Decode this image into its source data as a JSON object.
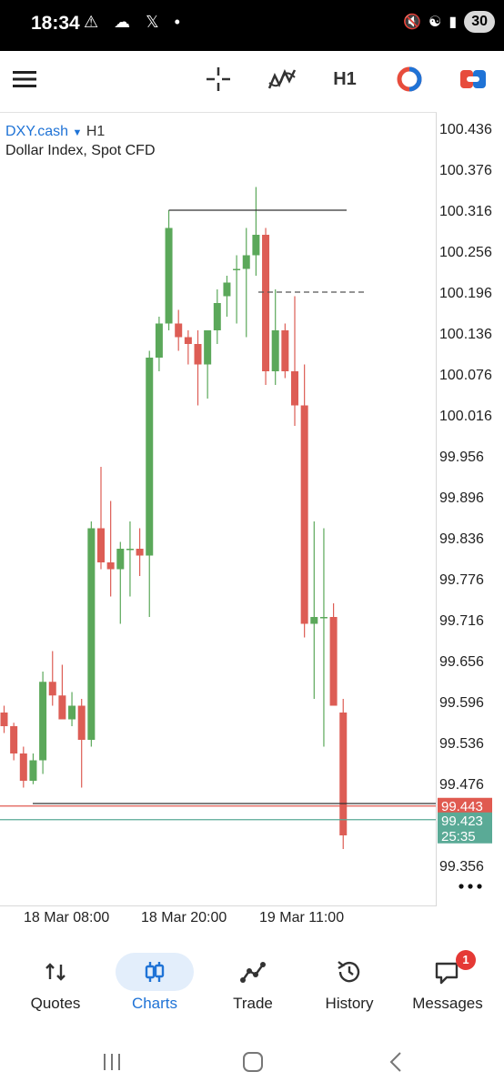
{
  "status_bar": {
    "time": "18:34",
    "left_icons": "⚠ ☁ 𝕏 •",
    "battery": "30"
  },
  "toolbar": {
    "timeframe": "H1"
  },
  "chart_header": {
    "symbol": "DXY.cash",
    "timeframe": "H1",
    "description": "Dollar Index, Spot CFD"
  },
  "chart_data": {
    "type": "candlestick",
    "symbol": "DXY.cash",
    "timeframe": "H1",
    "ylim": [
      99.33,
      100.46
    ],
    "y_ticks": [
      "100.436",
      "100.376",
      "100.316",
      "100.256",
      "100.196",
      "100.136",
      "100.076",
      "100.016",
      "99.956",
      "99.896",
      "99.836",
      "99.776",
      "99.716",
      "99.656",
      "99.596",
      "99.536",
      "99.476",
      "99.356"
    ],
    "x_labels": [
      "18 Mar 08:00",
      "18 Mar 20:00",
      "19 Mar 11:00"
    ],
    "candles": [
      {
        "o": 99.58,
        "h": 99.59,
        "l": 99.55,
        "c": 99.56
      },
      {
        "o": 99.56,
        "h": 99.565,
        "l": 99.51,
        "c": 99.52
      },
      {
        "o": 99.52,
        "h": 99.53,
        "l": 99.47,
        "c": 99.48
      },
      {
        "o": 99.48,
        "h": 99.52,
        "l": 99.475,
        "c": 99.51
      },
      {
        "o": 99.51,
        "h": 99.64,
        "l": 99.49,
        "c": 99.625
      },
      {
        "o": 99.625,
        "h": 99.67,
        "l": 99.59,
        "c": 99.605
      },
      {
        "o": 99.605,
        "h": 99.65,
        "l": 99.57,
        "c": 99.57
      },
      {
        "o": 99.57,
        "h": 99.61,
        "l": 99.56,
        "c": 99.59
      },
      {
        "o": 99.59,
        "h": 99.6,
        "l": 99.47,
        "c": 99.54
      },
      {
        "o": 99.54,
        "h": 99.86,
        "l": 99.53,
        "c": 99.85
      },
      {
        "o": 99.85,
        "h": 99.94,
        "l": 99.79,
        "c": 99.8
      },
      {
        "o": 99.8,
        "h": 99.89,
        "l": 99.75,
        "c": 99.79
      },
      {
        "o": 99.79,
        "h": 99.83,
        "l": 99.71,
        "c": 99.82
      },
      {
        "o": 99.82,
        "h": 99.86,
        "l": 99.75,
        "c": 99.82
      },
      {
        "o": 99.82,
        "h": 99.85,
        "l": 99.78,
        "c": 99.81
      },
      {
        "o": 99.81,
        "h": 100.11,
        "l": 99.72,
        "c": 100.1
      },
      {
        "o": 100.1,
        "h": 100.16,
        "l": 100.08,
        "c": 100.15
      },
      {
        "o": 100.15,
        "h": 100.316,
        "l": 100.14,
        "c": 100.29
      },
      {
        "o": 100.15,
        "h": 100.17,
        "l": 100.11,
        "c": 100.13
      },
      {
        "o": 100.13,
        "h": 100.14,
        "l": 100.09,
        "c": 100.12
      },
      {
        "o": 100.12,
        "h": 100.14,
        "l": 100.03,
        "c": 100.09
      },
      {
        "o": 100.09,
        "h": 100.14,
        "l": 100.04,
        "c": 100.14
      },
      {
        "o": 100.14,
        "h": 100.2,
        "l": 100.12,
        "c": 100.18
      },
      {
        "o": 100.19,
        "h": 100.22,
        "l": 100.16,
        "c": 100.21
      },
      {
        "o": 100.23,
        "h": 100.25,
        "l": 100.15,
        "c": 100.23
      },
      {
        "o": 100.23,
        "h": 100.29,
        "l": 100.13,
        "c": 100.25
      },
      {
        "o": 100.25,
        "h": 100.35,
        "l": 100.22,
        "c": 100.28
      },
      {
        "o": 100.28,
        "h": 100.29,
        "l": 100.06,
        "c": 100.08
      },
      {
        "o": 100.08,
        "h": 100.2,
        "l": 100.06,
        "c": 100.14
      },
      {
        "o": 100.14,
        "h": 100.15,
        "l": 100.07,
        "c": 100.08
      },
      {
        "o": 100.08,
        "h": 100.19,
        "l": 100.0,
        "c": 100.03
      },
      {
        "o": 100.03,
        "h": 100.09,
        "l": 99.69,
        "c": 99.71
      },
      {
        "o": 99.71,
        "h": 99.86,
        "l": 99.6,
        "c": 99.72
      },
      {
        "o": 99.72,
        "h": 99.85,
        "l": 99.53,
        "c": 99.72
      },
      {
        "o": 99.72,
        "h": 99.74,
        "l": 99.59,
        "c": 99.59
      },
      {
        "o": 99.58,
        "h": 99.6,
        "l": 99.38,
        "c": 99.4
      }
    ],
    "high_line": 100.316,
    "open_ref_line": 100.196,
    "bid": {
      "value": "99.443",
      "color": "#e05a50"
    },
    "ask": {
      "value": "99.423",
      "color": "#5aaa96"
    },
    "countdown": "25:35",
    "colors": {
      "bull": "#5ba85a",
      "bear": "#dd5d55",
      "wick": "#4a4a4a"
    }
  },
  "bottom_nav": {
    "items": [
      {
        "label": "Quotes"
      },
      {
        "label": "Charts"
      },
      {
        "label": "Trade"
      },
      {
        "label": "History"
      },
      {
        "label": "Messages",
        "badge": "1"
      }
    ]
  }
}
